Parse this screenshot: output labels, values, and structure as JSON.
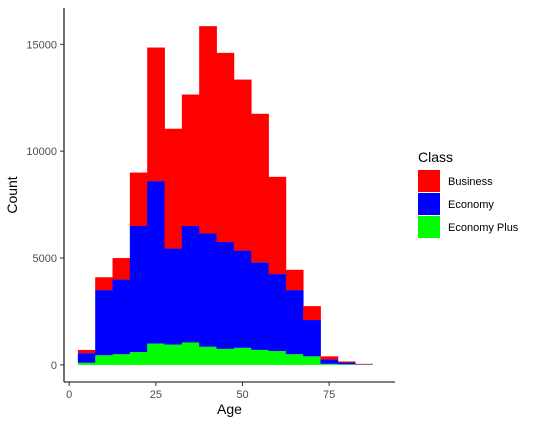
{
  "chart_data": {
    "type": "bar",
    "stacked": true,
    "histogram": true,
    "bin_width": 5,
    "x": [
      5,
      10,
      15,
      20,
      25,
      30,
      35,
      40,
      45,
      50,
      55,
      60,
      65,
      70,
      75,
      80,
      85
    ],
    "series": [
      {
        "name": "Economy Plus",
        "color": "#00FF00",
        "values": [
          100,
          450,
          500,
          600,
          1000,
          950,
          1050,
          850,
          750,
          800,
          700,
          650,
          500,
          400,
          50,
          30,
          10
        ]
      },
      {
        "name": "Economy",
        "color": "#0000FF",
        "values": [
          450,
          3050,
          3500,
          5900,
          7600,
          4500,
          5450,
          5300,
          5000,
          4550,
          4100,
          3600,
          3000,
          1700,
          200,
          80,
          20
        ]
      },
      {
        "name": "Business",
        "color": "#FF0000",
        "values": [
          150,
          600,
          1000,
          2500,
          6250,
          5600,
          6150,
          9700,
          8850,
          8000,
          6950,
          4550,
          950,
          650,
          150,
          50,
          20
        ]
      }
    ],
    "xlabel": "Age",
    "ylabel": "Count",
    "xlim": [
      -1.5,
      94
    ],
    "ylim": [
      -800,
      16700
    ],
    "x_ticks": [
      0,
      25,
      50,
      75
    ],
    "x_tick_labels": [
      "0",
      "25",
      "50",
      "75"
    ],
    "y_ticks": [
      0,
      5000,
      10000,
      15000
    ],
    "y_tick_labels": [
      "0",
      "5000",
      "10000",
      "15000"
    ],
    "grid": false,
    "legend": {
      "title": "Class",
      "position": "right",
      "entries": [
        "Business",
        "Economy",
        "Economy Plus"
      ]
    }
  }
}
